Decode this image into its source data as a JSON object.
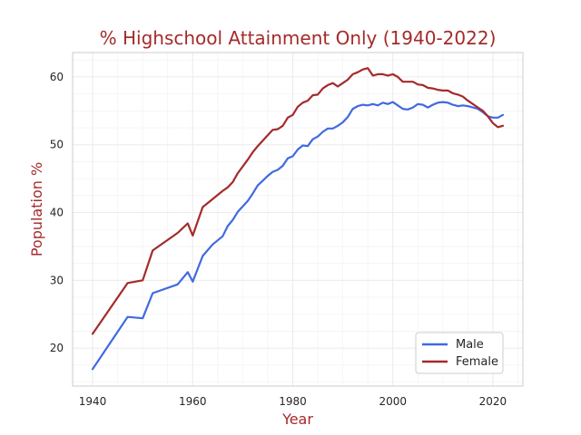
{
  "chart_data": {
    "type": "line",
    "title": "% Highschool Attainment Only (1940-2022)",
    "xlabel": "Year",
    "ylabel": "Population %",
    "xlim": [
      1936,
      2026
    ],
    "ylim": [
      14.4,
      63.6
    ],
    "xticks": [
      1940,
      1960,
      1980,
      2000,
      2020
    ],
    "yticks": [
      20,
      30,
      40,
      50,
      60
    ],
    "grid": true,
    "legend_position": "lower-right",
    "colors": {
      "title": "#a52a2a",
      "axis_label": "#a52a2a",
      "Male": "#4169e1",
      "Female": "#a52a2a",
      "grid": "#ebebeb",
      "minor_grid": "#f3f3f3",
      "spine": "#cccccc"
    },
    "series": [
      {
        "name": "Male",
        "color": "#4169e1",
        "points": [
          [
            1940,
            16.9
          ],
          [
            1947,
            24.6
          ],
          [
            1950,
            24.4
          ],
          [
            1952,
            28.1
          ],
          [
            1957,
            29.4
          ],
          [
            1959,
            31.2
          ],
          [
            1960,
            29.8
          ],
          [
            1962,
            33.6
          ],
          [
            1964,
            35.3
          ],
          [
            1966,
            36.5
          ],
          [
            1967,
            38.0
          ],
          [
            1968,
            38.9
          ],
          [
            1969,
            40.1
          ],
          [
            1970,
            40.9
          ],
          [
            1971,
            41.7
          ],
          [
            1972,
            42.8
          ],
          [
            1973,
            44.0
          ],
          [
            1974,
            44.7
          ],
          [
            1975,
            45.4
          ],
          [
            1976,
            46.0
          ],
          [
            1977,
            46.3
          ],
          [
            1978,
            46.9
          ],
          [
            1979,
            48.0
          ],
          [
            1980,
            48.3
          ],
          [
            1981,
            49.3
          ],
          [
            1982,
            49.9
          ],
          [
            1983,
            49.8
          ],
          [
            1984,
            50.8
          ],
          [
            1985,
            51.2
          ],
          [
            1986,
            51.9
          ],
          [
            1987,
            52.4
          ],
          [
            1988,
            52.4
          ],
          [
            1989,
            52.8
          ],
          [
            1990,
            53.3
          ],
          [
            1991,
            54.1
          ],
          [
            1992,
            55.3
          ],
          [
            1993,
            55.7
          ],
          [
            1994,
            55.9
          ],
          [
            1995,
            55.8
          ],
          [
            1996,
            56.0
          ],
          [
            1997,
            55.8
          ],
          [
            1998,
            56.2
          ],
          [
            1999,
            56.0
          ],
          [
            2000,
            56.3
          ],
          [
            2001,
            55.8
          ],
          [
            2002,
            55.3
          ],
          [
            2003,
            55.2
          ],
          [
            2004,
            55.5
          ],
          [
            2005,
            56.0
          ],
          [
            2006,
            55.9
          ],
          [
            2007,
            55.5
          ],
          [
            2008,
            55.9
          ],
          [
            2009,
            56.2
          ],
          [
            2010,
            56.3
          ],
          [
            2011,
            56.2
          ],
          [
            2012,
            55.9
          ],
          [
            2013,
            55.7
          ],
          [
            2014,
            55.8
          ],
          [
            2015,
            55.7
          ],
          [
            2016,
            55.5
          ],
          [
            2017,
            55.3
          ],
          [
            2018,
            54.8
          ],
          [
            2019,
            54.2
          ],
          [
            2020,
            54.0
          ],
          [
            2021,
            54.0
          ],
          [
            2022,
            54.4
          ]
        ]
      },
      {
        "name": "Female",
        "color": "#a52a2a",
        "points": [
          [
            1940,
            22.1
          ],
          [
            1947,
            29.6
          ],
          [
            1950,
            30.0
          ],
          [
            1952,
            34.4
          ],
          [
            1957,
            37.0
          ],
          [
            1959,
            38.4
          ],
          [
            1960,
            36.6
          ],
          [
            1962,
            40.8
          ],
          [
            1964,
            42.0
          ],
          [
            1966,
            43.2
          ],
          [
            1967,
            43.7
          ],
          [
            1968,
            44.5
          ],
          [
            1969,
            45.8
          ],
          [
            1970,
            46.8
          ],
          [
            1971,
            47.8
          ],
          [
            1972,
            48.9
          ],
          [
            1973,
            49.8
          ],
          [
            1974,
            50.6
          ],
          [
            1975,
            51.4
          ],
          [
            1976,
            52.2
          ],
          [
            1977,
            52.3
          ],
          [
            1978,
            52.8
          ],
          [
            1979,
            54.0
          ],
          [
            1980,
            54.4
          ],
          [
            1981,
            55.6
          ],
          [
            1982,
            56.2
          ],
          [
            1983,
            56.5
          ],
          [
            1984,
            57.3
          ],
          [
            1985,
            57.4
          ],
          [
            1986,
            58.3
          ],
          [
            1987,
            58.8
          ],
          [
            1988,
            59.1
          ],
          [
            1989,
            58.6
          ],
          [
            1990,
            59.1
          ],
          [
            1991,
            59.6
          ],
          [
            1992,
            60.4
          ],
          [
            1993,
            60.7
          ],
          [
            1994,
            61.1
          ],
          [
            1995,
            61.3
          ],
          [
            1996,
            60.2
          ],
          [
            1997,
            60.4
          ],
          [
            1998,
            60.4
          ],
          [
            1999,
            60.2
          ],
          [
            2000,
            60.4
          ],
          [
            2001,
            60.0
          ],
          [
            2002,
            59.3
          ],
          [
            2003,
            59.3
          ],
          [
            2004,
            59.3
          ],
          [
            2005,
            58.9
          ],
          [
            2006,
            58.8
          ],
          [
            2007,
            58.4
          ],
          [
            2008,
            58.3
          ],
          [
            2009,
            58.1
          ],
          [
            2010,
            58.0
          ],
          [
            2011,
            58.0
          ],
          [
            2012,
            57.6
          ],
          [
            2013,
            57.4
          ],
          [
            2014,
            57.1
          ],
          [
            2015,
            56.5
          ],
          [
            2016,
            56.0
          ],
          [
            2017,
            55.5
          ],
          [
            2018,
            55.0
          ],
          [
            2019,
            54.2
          ],
          [
            2020,
            53.2
          ],
          [
            2021,
            52.6
          ],
          [
            2022,
            52.8
          ]
        ]
      }
    ]
  }
}
